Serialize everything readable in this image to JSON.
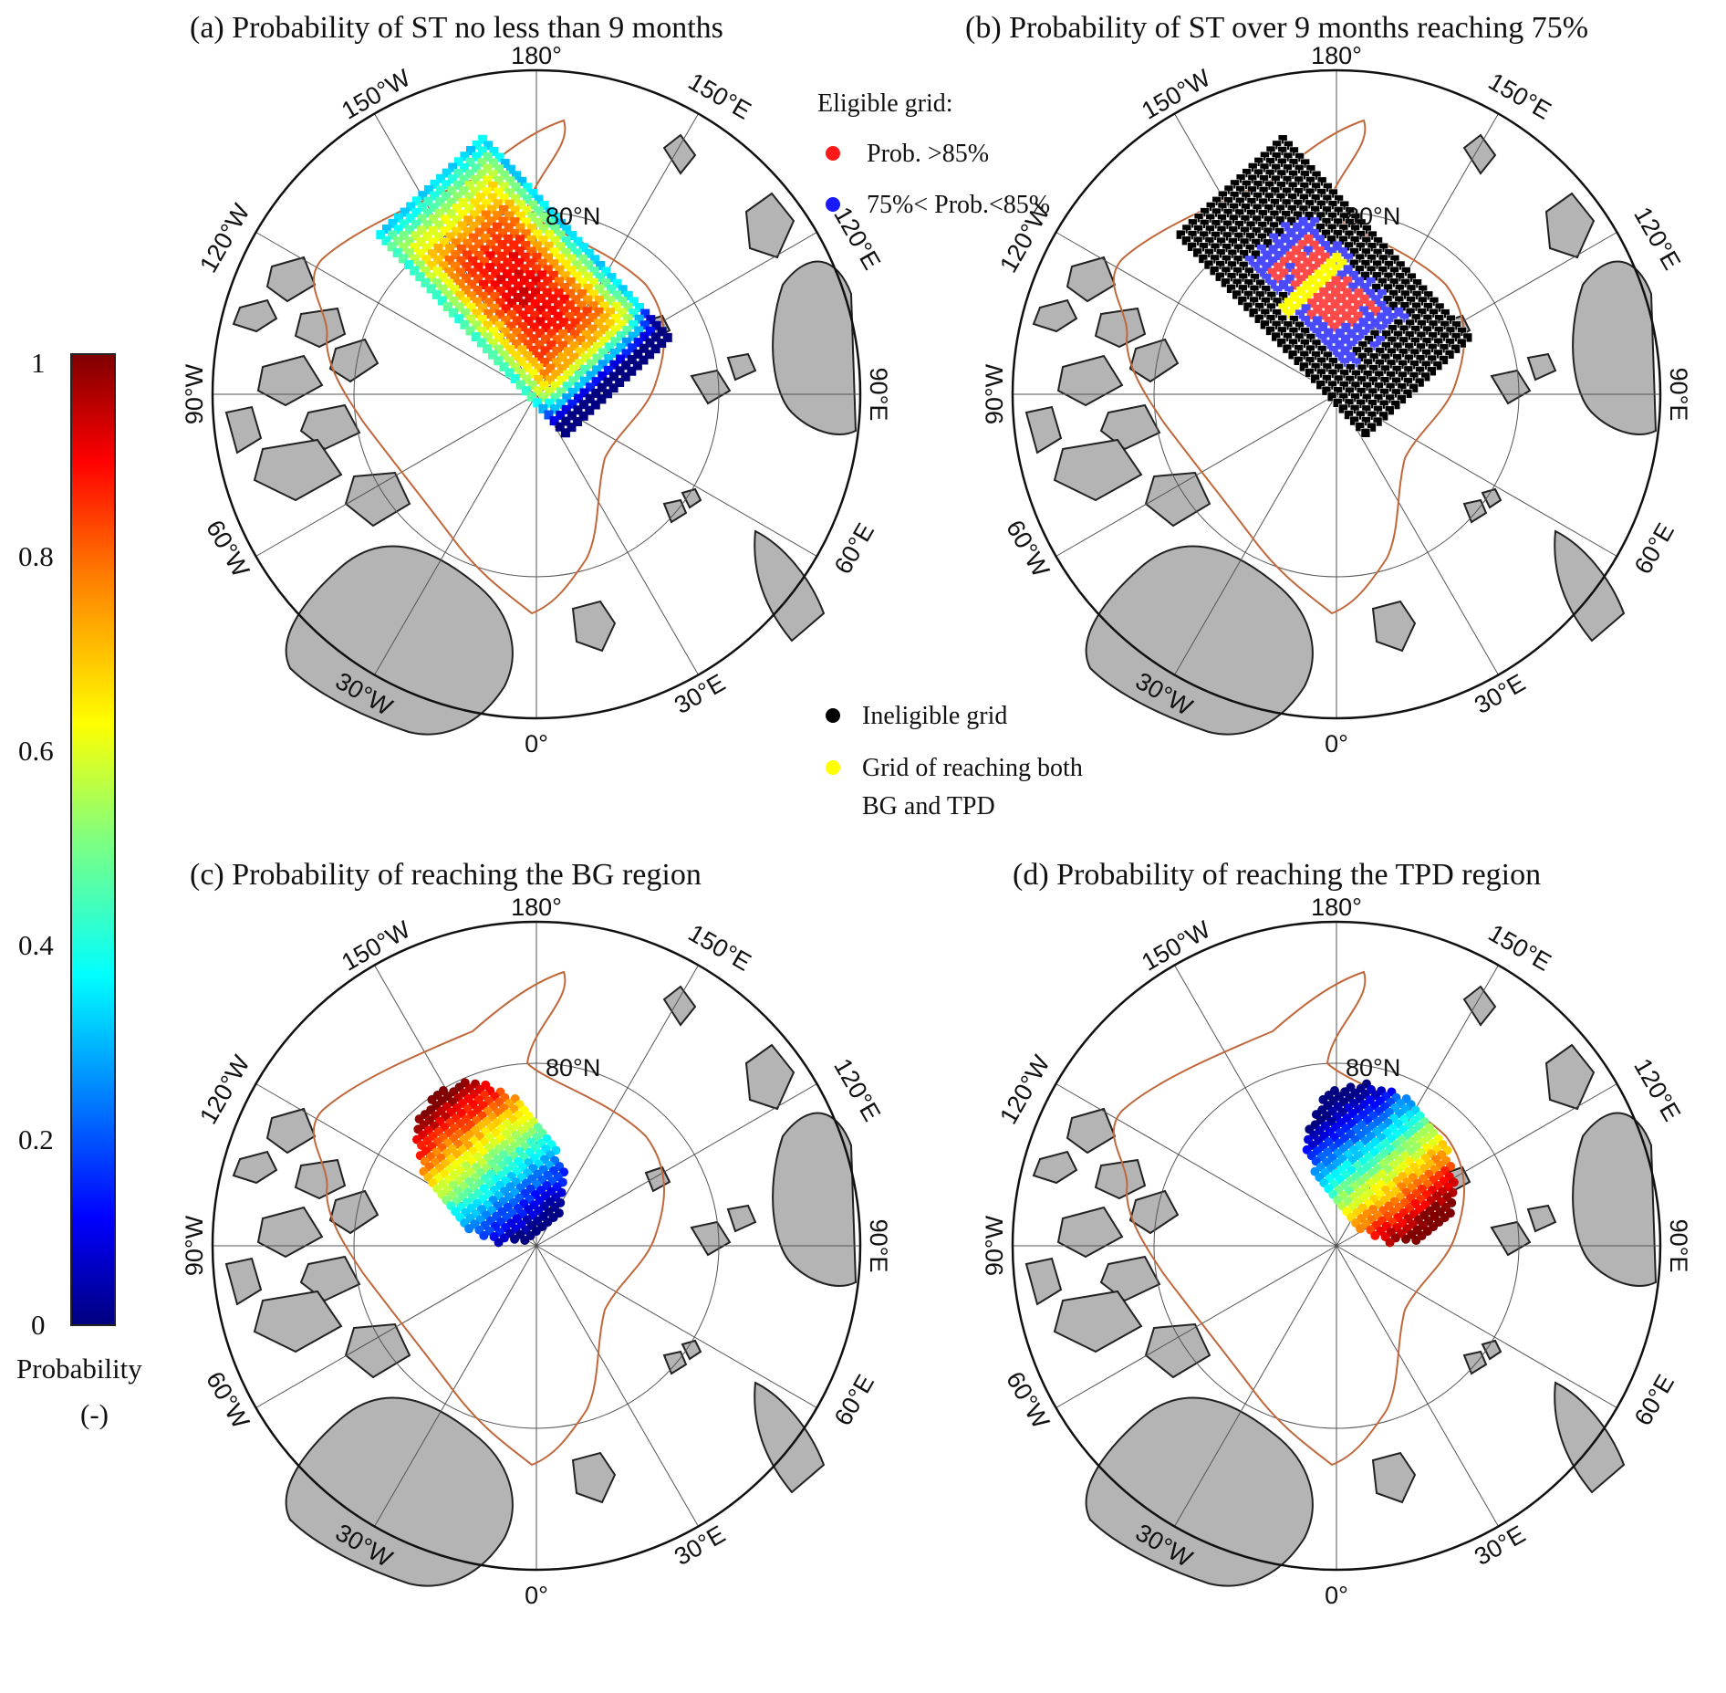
{
  "panels": [
    {
      "id": "a",
      "title": "(a) Probability of ST no less than 9 months"
    },
    {
      "id": "b",
      "title": "(b) Probability of ST over 9 months reaching 75%"
    },
    {
      "id": "c",
      "title": "(c) Probability of reaching the BG region"
    },
    {
      "id": "d",
      "title": "(d) Probability of reaching the TPD region"
    }
  ],
  "map_labels": {
    "lon_180": "180°",
    "lon_150w": "150°W",
    "lon_150e": "150°E",
    "lon_120w": "120°W",
    "lon_120e": "120°E",
    "lon_90w": "90°W",
    "lon_90e": "90°E",
    "lon_60w": "60°W",
    "lon_60e": "60°E",
    "lon_30w": "30°W",
    "lon_30e": "30°E",
    "lon_0": "0°",
    "lat_80n": "80°N"
  },
  "colorbar": {
    "ticks": [
      "0",
      "0.2",
      "0.4",
      "0.6",
      "0.8",
      "1"
    ],
    "label": "Probability",
    "unit": "(-)",
    "colormap": "jet"
  },
  "legend_b": {
    "eligible_title": "Eligible grid:",
    "red_label": "Prob. >85%",
    "blue_label": "75%< Prob.<85%",
    "black_label": "Ineligible grid",
    "yellow_label_1": "Grid of reaching both",
    "yellow_label_2": "BG and TPD",
    "red_color": "#ff1a1a",
    "blue_color": "#1a1aff",
    "black_color": "#000000",
    "yellow_color": "#ffff00"
  },
  "colors": {
    "land": "#b4b4b4",
    "boundary": "#c0683c",
    "graticule": "#555555"
  }
}
